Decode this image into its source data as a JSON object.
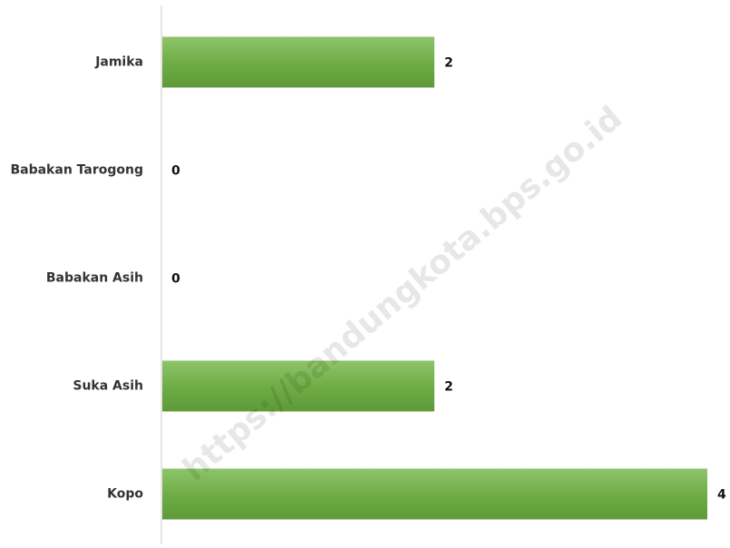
{
  "chart_data": {
    "type": "bar",
    "orientation": "horizontal",
    "categories": [
      "Jamika",
      "Babakan Tarogong",
      "Babakan Asih",
      "Suka Asih",
      "Kopo"
    ],
    "values": [
      2,
      0,
      0,
      2,
      4
    ],
    "color": "#70ad47",
    "xlim": [
      0,
      4
    ],
    "watermark": "https://bandungkota.bps.go.id"
  }
}
